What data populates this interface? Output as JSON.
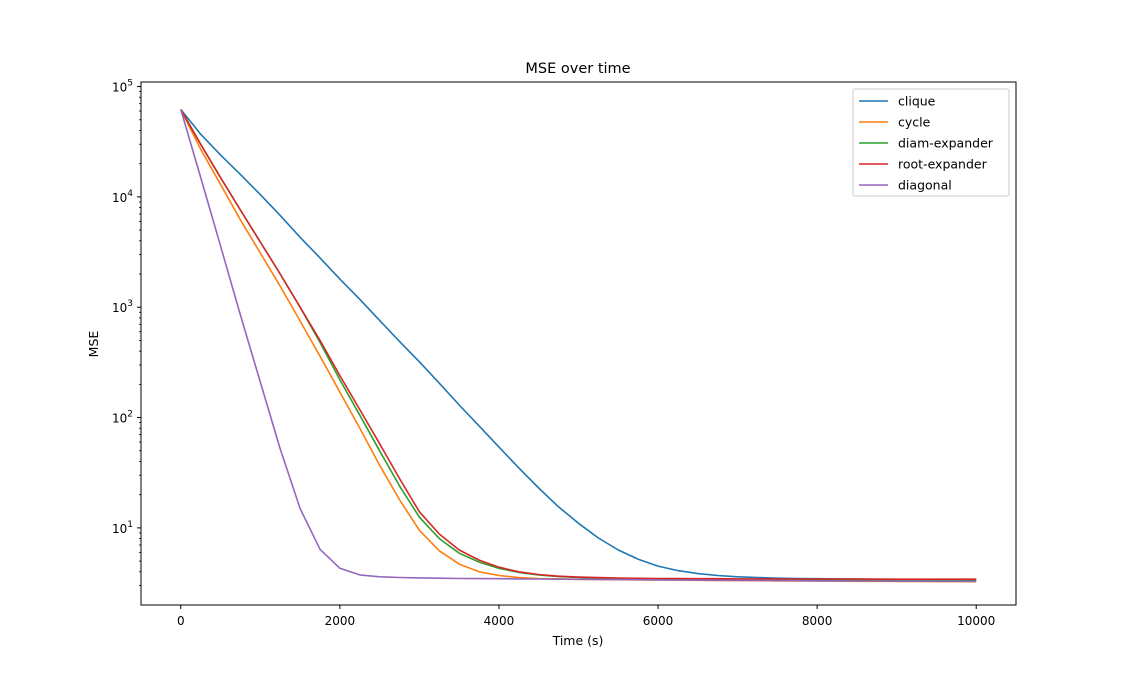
{
  "chart_data": {
    "type": "line",
    "title": "MSE over time",
    "xlabel": "Time (s)",
    "ylabel": "MSE",
    "xlim": [
      -500,
      10500
    ],
    "ylim": [
      2.0,
      110000
    ],
    "yscale": "log",
    "x_ticks": [
      0,
      2000,
      4000,
      6000,
      8000,
      10000
    ],
    "x_tick_labels": [
      "0",
      "2000",
      "4000",
      "6000",
      "8000",
      "10000"
    ],
    "y_ticks": [
      10,
      100,
      1000,
      10000,
      100000
    ],
    "y_tick_labels": [
      {
        "base": "10",
        "exp": "1"
      },
      {
        "base": "10",
        "exp": "2"
      },
      {
        "base": "10",
        "exp": "3"
      },
      {
        "base": "10",
        "exp": "4"
      },
      {
        "base": "10",
        "exp": "5"
      }
    ],
    "grid": false,
    "legend_position": "upper right",
    "x": [
      0,
      250,
      500,
      750,
      1000,
      1250,
      1500,
      1750,
      2000,
      2250,
      2500,
      2750,
      3000,
      3250,
      3500,
      3750,
      4000,
      4250,
      4500,
      4750,
      5000,
      5250,
      5500,
      5750,
      6000,
      6250,
      6500,
      6750,
      7000,
      7250,
      7500,
      7750,
      8000,
      8250,
      8500,
      8750,
      9000,
      9250,
      9500,
      9750,
      10000
    ],
    "series": [
      {
        "name": "clique",
        "color": "#1f77b4",
        "values": [
          62000,
          37000,
          24000,
          16000,
          10500,
          6800,
          4300,
          2800,
          1800,
          1180,
          760,
          490,
          320,
          205,
          130,
          84,
          54,
          35,
          23,
          15.5,
          11,
          8.1,
          6.3,
          5.2,
          4.5,
          4.1,
          3.85,
          3.7,
          3.6,
          3.55,
          3.5,
          3.48,
          3.46,
          3.45,
          3.44,
          3.43,
          3.42,
          3.41,
          3.4,
          3.39,
          3.38
        ]
      },
      {
        "name": "cycle",
        "color": "#ff7f0e",
        "values": [
          62000,
          27000,
          13000,
          6200,
          3100,
          1550,
          750,
          360,
          170,
          80,
          37,
          18,
          9.5,
          6.2,
          4.7,
          4.0,
          3.7,
          3.55,
          3.48,
          3.45,
          3.42,
          3.4,
          3.39,
          3.38,
          3.37,
          3.36,
          3.35,
          3.34,
          3.33,
          3.32,
          3.31,
          3.3,
          3.3,
          3.29,
          3.28,
          3.28,
          3.27,
          3.27,
          3.26,
          3.26,
          3.25
        ]
      },
      {
        "name": "diam-expander",
        "color": "#2ca02c",
        "values": [
          62000,
          30000,
          15000,
          7600,
          3900,
          2000,
          1000,
          480,
          220,
          105,
          50,
          24,
          12.5,
          8.0,
          5.9,
          4.9,
          4.3,
          3.95,
          3.75,
          3.62,
          3.55,
          3.5,
          3.47,
          3.45,
          3.43,
          3.42,
          3.41,
          3.4,
          3.39,
          3.39,
          3.38,
          3.38,
          3.37,
          3.37,
          3.36,
          3.36,
          3.36,
          3.35,
          3.35,
          3.35,
          3.35
        ]
      },
      {
        "name": "root-expander",
        "color": "#d62728",
        "values": [
          62000,
          30000,
          15000,
          7600,
          3900,
          2000,
          1000,
          500,
          240,
          118,
          58,
          28,
          14,
          8.8,
          6.3,
          5.1,
          4.4,
          4.0,
          3.78,
          3.65,
          3.58,
          3.54,
          3.51,
          3.49,
          3.48,
          3.47,
          3.46,
          3.46,
          3.45,
          3.45,
          3.45,
          3.44,
          3.44,
          3.44,
          3.44,
          3.43,
          3.43,
          3.43,
          3.43,
          3.43,
          3.43
        ]
      },
      {
        "name": "diagonal",
        "color": "#9467bd",
        "values": [
          62000,
          15000,
          3600,
          850,
          210,
          52,
          15,
          6.4,
          4.3,
          3.75,
          3.6,
          3.55,
          3.52,
          3.5,
          3.48,
          3.47,
          3.46,
          3.45,
          3.44,
          3.43,
          3.42,
          3.41,
          3.4,
          3.39,
          3.38,
          3.37,
          3.36,
          3.35,
          3.35,
          3.34,
          3.33,
          3.32,
          3.31,
          3.31,
          3.3,
          3.3,
          3.29,
          3.29,
          3.28,
          3.28,
          3.27
        ]
      }
    ]
  }
}
